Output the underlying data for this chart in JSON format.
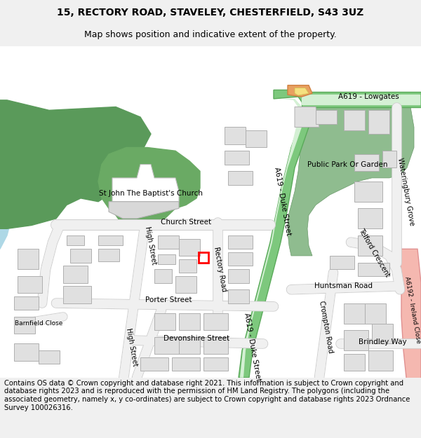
{
  "title_line1": "15, RECTORY ROAD, STAVELEY, CHESTERFIELD, S43 3UZ",
  "title_line2": "Map shows position and indicative extent of the property.",
  "footer_text": "Contains OS data © Crown copyright and database right 2021. This information is subject to Crown copyright and database rights 2023 and is reproduced with the permission of HM Land Registry. The polygons (including the associated geometry, namely x, y co-ordinates) are subject to Crown copyright and database rights 2023 Ordnance Survey 100026316.",
  "bg_color": "#f5f5f5",
  "map_bg": "#ffffff",
  "road_color": "#ffffff",
  "road_stroke": "#cccccc",
  "green_area": "#6aaa64",
  "light_green": "#c8e6c0",
  "blue_water": "#aad3df",
  "pink_road": "#f9c4b4",
  "yellow_road": "#f5e9a0",
  "a619_green": "#7dc87d",
  "building_color": "#e8e8e8",
  "building_stroke": "#bbbbbb",
  "highlight_rect_color": "#ff0000",
  "title_fontsize": 10,
  "footer_fontsize": 7.5
}
